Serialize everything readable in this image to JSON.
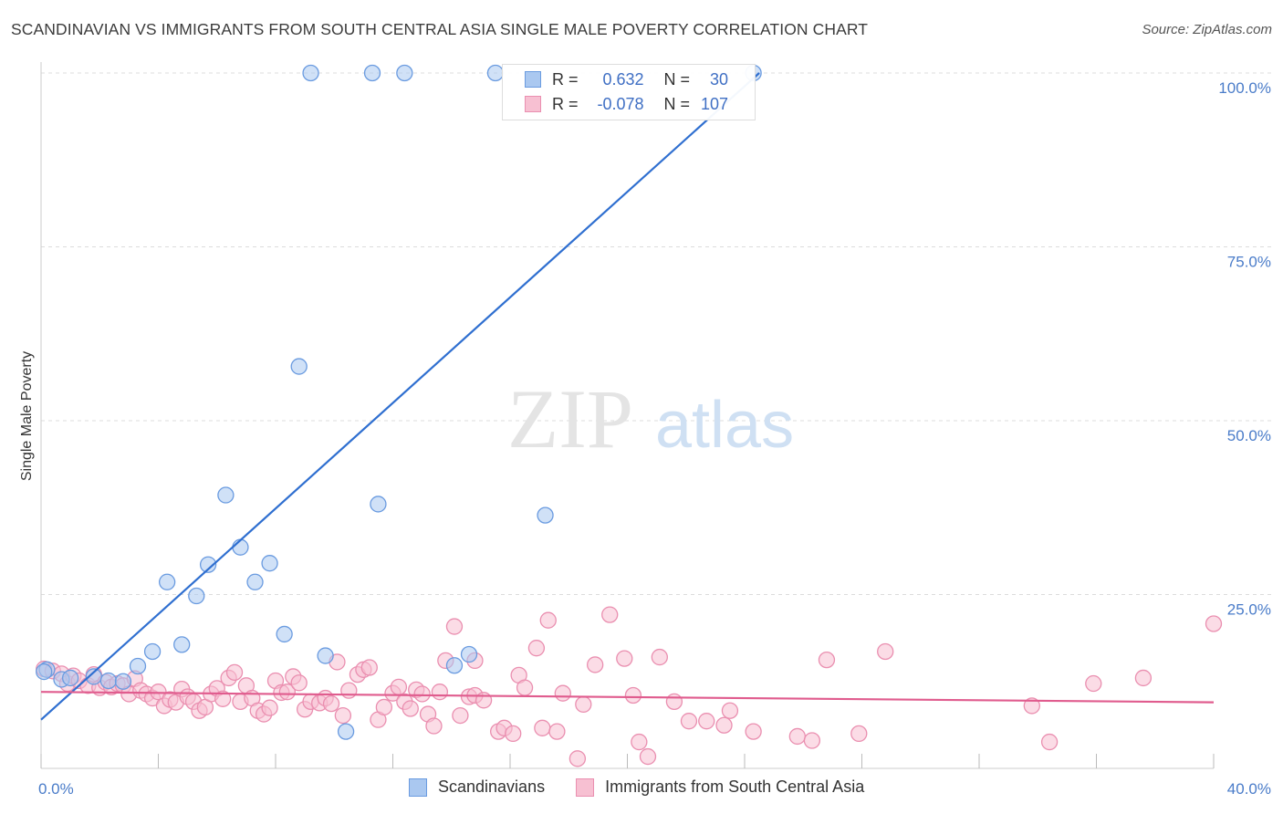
{
  "title": "SCANDINAVIAN VS IMMIGRANTS FROM SOUTH CENTRAL ASIA SINGLE MALE POVERTY CORRELATION CHART",
  "source": "Source: ZipAtlas.com",
  "watermark": {
    "zip": "ZIP",
    "atlas": "atlas"
  },
  "legend": {
    "r_label": "R =",
    "n_label": "N =",
    "rows": [
      {
        "name": "Scandinavians",
        "r": "0.632",
        "n": "30",
        "fill": "#aac8f0",
        "stroke": "#6a9be0"
      },
      {
        "name": "Immigrants from South Central Asia",
        "r": "-0.078",
        "n": "107",
        "fill": "#f7c0d2",
        "stroke": "#ea8fb0"
      }
    ]
  },
  "chart_data": {
    "type": "scatter",
    "title": "SCANDINAVIAN VS IMMIGRANTS FROM SOUTH CENTRAL ASIA SINGLE MALE POVERTY CORRELATION CHART",
    "xlabel": "",
    "ylabel": "Single Male Poverty",
    "xlim": [
      0,
      40
    ],
    "ylim": [
      0,
      100
    ],
    "x_tick_labels": [
      "0.0%",
      "40.0%"
    ],
    "y_tick_labels": [
      "25.0%",
      "50.0%",
      "75.0%",
      "100.0%"
    ],
    "y_tick_values": [
      25,
      50,
      75,
      100
    ],
    "grid": true,
    "legend_position": "top-center",
    "series": [
      {
        "name": "Scandinavians",
        "color": "#6a9be0",
        "fill": "#aac8f0",
        "trend": {
          "x": [
            0,
            24.5
          ],
          "y": [
            7,
            100
          ]
        },
        "trend_color": "#2f6fd0",
        "points": [
          [
            0.2,
            14.2
          ],
          [
            0.7,
            12.8
          ],
          [
            1.0,
            13.0
          ],
          [
            1.8,
            13.2
          ],
          [
            2.3,
            12.6
          ],
          [
            2.8,
            12.5
          ],
          [
            3.3,
            14.7
          ],
          [
            3.8,
            16.8
          ],
          [
            4.3,
            26.8
          ],
          [
            4.8,
            17.8
          ],
          [
            5.3,
            24.8
          ],
          [
            5.7,
            29.3
          ],
          [
            6.3,
            39.3
          ],
          [
            6.8,
            31.8
          ],
          [
            7.3,
            26.8
          ],
          [
            7.8,
            29.5
          ],
          [
            8.3,
            19.3
          ],
          [
            8.8,
            57.8
          ],
          [
            9.2,
            100
          ],
          [
            9.7,
            16.2
          ],
          [
            10.4,
            5.3
          ],
          [
            11.3,
            100
          ],
          [
            11.5,
            38.0
          ],
          [
            12.4,
            100
          ],
          [
            14.1,
            14.8
          ],
          [
            14.6,
            16.4
          ],
          [
            15.5,
            100
          ],
          [
            17.2,
            36.4
          ],
          [
            24.3,
            100
          ],
          [
            0.1,
            13.9
          ]
        ]
      },
      {
        "name": "Immigrants from South Central Asia",
        "color": "#ea8fb0",
        "fill": "#f7c0d2",
        "trend": {
          "x": [
            0,
            40
          ],
          "y": [
            11,
            9.5
          ]
        },
        "trend_color": "#e05c8e",
        "points": [
          [
            0.1,
            14.3
          ],
          [
            0.4,
            14.0
          ],
          [
            0.7,
            13.6
          ],
          [
            0.9,
            12.2
          ],
          [
            1.1,
            13.3
          ],
          [
            1.3,
            12.6
          ],
          [
            1.6,
            11.9
          ],
          [
            1.8,
            13.5
          ],
          [
            2.0,
            11.6
          ],
          [
            2.2,
            12.4
          ],
          [
            2.4,
            11.7
          ],
          [
            2.6,
            12.2
          ],
          [
            2.8,
            11.9
          ],
          [
            3.0,
            10.7
          ],
          [
            3.2,
            12.9
          ],
          [
            3.4,
            11.2
          ],
          [
            3.6,
            10.7
          ],
          [
            3.8,
            10.1
          ],
          [
            4.0,
            11.0
          ],
          [
            4.2,
            9.0
          ],
          [
            4.4,
            9.9
          ],
          [
            4.6,
            9.5
          ],
          [
            4.8,
            11.4
          ],
          [
            5.0,
            10.3
          ],
          [
            5.2,
            9.6
          ],
          [
            5.4,
            8.3
          ],
          [
            5.6,
            8.8
          ],
          [
            5.8,
            10.7
          ],
          [
            6.0,
            11.5
          ],
          [
            6.2,
            10.0
          ],
          [
            6.4,
            13.0
          ],
          [
            6.6,
            13.8
          ],
          [
            6.8,
            9.6
          ],
          [
            7.0,
            11.9
          ],
          [
            7.2,
            10.1
          ],
          [
            7.4,
            8.3
          ],
          [
            7.6,
            7.8
          ],
          [
            7.8,
            8.7
          ],
          [
            8.0,
            12.6
          ],
          [
            8.2,
            10.9
          ],
          [
            8.4,
            11.0
          ],
          [
            8.6,
            13.2
          ],
          [
            8.8,
            12.3
          ],
          [
            9.0,
            8.5
          ],
          [
            9.2,
            9.6
          ],
          [
            9.5,
            9.4
          ],
          [
            9.7,
            10.1
          ],
          [
            9.9,
            9.3
          ],
          [
            10.1,
            15.3
          ],
          [
            10.3,
            7.6
          ],
          [
            10.5,
            11.2
          ],
          [
            10.8,
            13.5
          ],
          [
            11.0,
            14.2
          ],
          [
            11.2,
            14.5
          ],
          [
            11.5,
            7.0
          ],
          [
            11.7,
            8.8
          ],
          [
            12.0,
            10.8
          ],
          [
            12.2,
            11.7
          ],
          [
            12.4,
            9.6
          ],
          [
            12.6,
            8.6
          ],
          [
            12.8,
            11.3
          ],
          [
            13.0,
            10.7
          ],
          [
            13.2,
            7.8
          ],
          [
            13.4,
            6.1
          ],
          [
            13.6,
            11.0
          ],
          [
            13.8,
            15.5
          ],
          [
            14.1,
            20.4
          ],
          [
            14.3,
            7.6
          ],
          [
            14.6,
            10.3
          ],
          [
            14.8,
            10.5
          ],
          [
            15.1,
            9.8
          ],
          [
            15.6,
            5.3
          ],
          [
            15.8,
            5.8
          ],
          [
            16.1,
            5.0
          ],
          [
            16.3,
            13.4
          ],
          [
            16.5,
            11.6
          ],
          [
            16.9,
            17.3
          ],
          [
            17.1,
            5.8
          ],
          [
            17.3,
            21.3
          ],
          [
            17.6,
            5.3
          ],
          [
            17.8,
            10.8
          ],
          [
            18.3,
            1.4
          ],
          [
            18.5,
            9.2
          ],
          [
            18.9,
            14.9
          ],
          [
            19.4,
            22.1
          ],
          [
            19.9,
            15.8
          ],
          [
            20.2,
            10.5
          ],
          [
            20.4,
            3.8
          ],
          [
            20.7,
            1.7
          ],
          [
            21.1,
            16.0
          ],
          [
            21.6,
            9.6
          ],
          [
            22.1,
            6.8
          ],
          [
            22.7,
            6.8
          ],
          [
            23.3,
            6.2
          ],
          [
            23.5,
            8.3
          ],
          [
            24.3,
            5.3
          ],
          [
            25.8,
            4.6
          ],
          [
            26.3,
            4.0
          ],
          [
            26.8,
            15.6
          ],
          [
            27.9,
            5.0
          ],
          [
            28.8,
            16.8
          ],
          [
            33.8,
            9.0
          ],
          [
            34.4,
            3.8
          ],
          [
            35.9,
            12.2
          ],
          [
            37.6,
            13.0
          ],
          [
            40.0,
            20.8
          ],
          [
            14.8,
            15.5
          ]
        ]
      }
    ]
  }
}
